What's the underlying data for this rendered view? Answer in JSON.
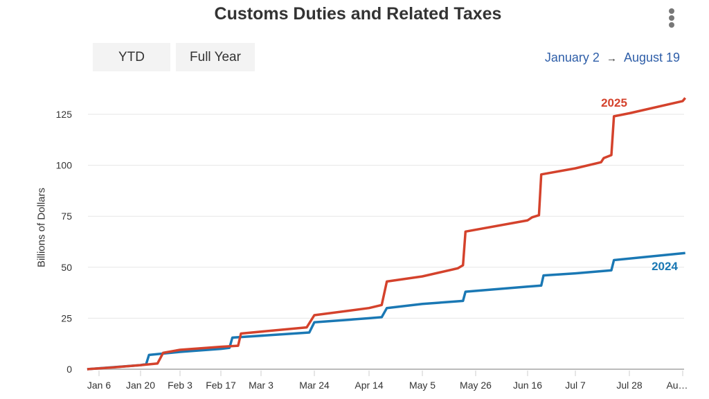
{
  "header": {
    "title": "Customs Duties and Related Taxes",
    "menu_icon": "more-vertical-icon",
    "buttons": [
      "YTD",
      "Full Year"
    ],
    "range_start": "January 2",
    "range_arrow": "→",
    "range_end": "August 19"
  },
  "chart_data": {
    "type": "line",
    "title": "Customs Duties and Related Taxes",
    "ylabel": "Billions of Dollars",
    "xlabel": "",
    "ylim": [
      0,
      132
    ],
    "yticks": [
      0,
      25,
      50,
      75,
      100,
      125
    ],
    "xtick_labels": [
      "Jan 6",
      "Jan 20",
      "Feb 3",
      "Feb 17",
      "Mar 3",
      "Mar 24",
      "Apr 14",
      "May 5",
      "May 26",
      "Jun 16",
      "Jul 7",
      "Jul 28",
      "Au…"
    ],
    "xticks": [
      "01-06",
      "01-20",
      "02-03",
      "02-17",
      "03-03",
      "03-24",
      "04-14",
      "05-05",
      "05-26",
      "06-16",
      "07-07",
      "07-28",
      "08-18"
    ],
    "grid": true,
    "series": [
      {
        "name": "2025",
        "color": "#d4422c",
        "x": [
          "01-02",
          "01-10",
          "01-20",
          "01-26",
          "01-28",
          "02-03",
          "02-17",
          "02-23",
          "02-24",
          "03-21",
          "03-24",
          "04-14",
          "04-19",
          "04-21",
          "05-05",
          "05-19",
          "05-21",
          "05-22",
          "06-16",
          "06-18",
          "06-21",
          "06-22",
          "07-07",
          "07-17",
          "07-18",
          "07-21",
          "07-22",
          "07-28",
          "08-18",
          "08-19"
        ],
        "y": [
          0,
          0.8,
          2,
          2.8,
          8,
          9.5,
          11,
          11.5,
          17.5,
          20.5,
          26.5,
          30,
          31.5,
          43,
          45.5,
          49.5,
          51,
          67.5,
          73,
          74.5,
          75.5,
          95.5,
          98.5,
          101.5,
          103.5,
          105,
          124,
          125.5,
          131.5,
          133
        ]
      },
      {
        "name": "2024",
        "color": "#1a78b4",
        "x": [
          "01-02",
          "01-20",
          "01-22",
          "01-23",
          "02-03",
          "02-17",
          "02-20",
          "02-21",
          "03-22",
          "03-24",
          "04-14",
          "04-19",
          "04-21",
          "05-05",
          "05-21",
          "05-22",
          "06-16",
          "06-22",
          "06-23",
          "07-07",
          "07-21",
          "07-22",
          "08-19"
        ],
        "y": [
          0,
          2,
          2.5,
          7,
          8.5,
          10,
          10.5,
          15.5,
          18,
          23,
          25,
          25.5,
          30,
          32,
          33.5,
          38,
          40.5,
          41,
          46,
          47,
          48.5,
          53.5,
          57
        ]
      }
    ]
  }
}
